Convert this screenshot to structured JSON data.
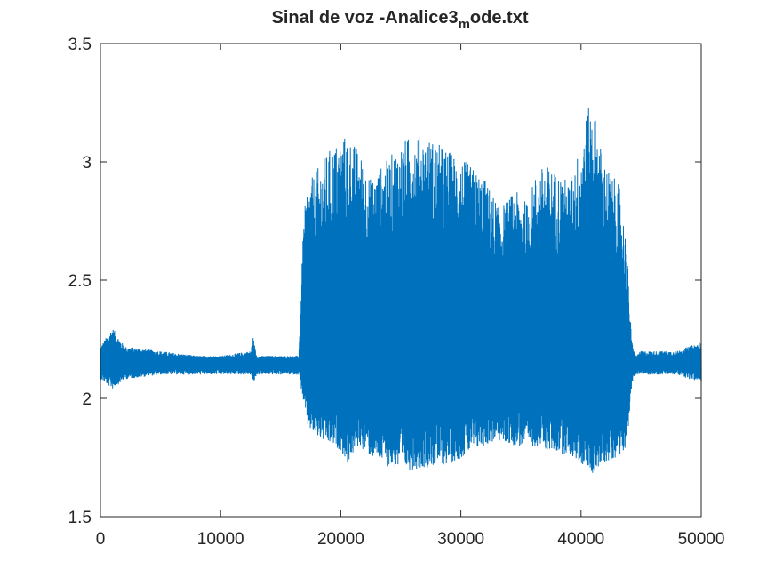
{
  "chart_data": {
    "type": "line",
    "title": "Sinal de voz -Analice3",
    "title_subscript": "m",
    "title_suffix": "ode.txt",
    "xlabel": "",
    "ylabel": "",
    "xlim": [
      0,
      50000
    ],
    "ylim": [
      1.5,
      3.5
    ],
    "xticks": [
      0,
      10000,
      20000,
      30000,
      40000,
      50000
    ],
    "xtick_labels": [
      "0",
      "10000",
      "20000",
      "30000",
      "40000",
      "50000"
    ],
    "yticks": [
      1.5,
      2,
      2.5,
      3,
      3.5
    ],
    "ytick_labels": [
      "1.5",
      "2",
      "2.5",
      "3",
      "3.5"
    ],
    "grid": false,
    "legend": "none",
    "series_color": "#0072BD",
    "n_samples": 50000,
    "baseline": 2.15,
    "envelope": {
      "x": [
        0,
        1000,
        2000,
        5000,
        8000,
        10000,
        12500,
        12700,
        13000,
        14000,
        16500,
        16900,
        17200,
        17800,
        19000,
        20000,
        20500,
        21500,
        22500,
        24000,
        25000,
        26000,
        27500,
        29000,
        30500,
        32000,
        33000,
        33500,
        34500,
        35500,
        36300,
        37000,
        38000,
        39000,
        40000,
        40500,
        41000,
        41800,
        42500,
        43200,
        43800,
        44200,
        44500,
        45000,
        48000,
        49000,
        50000
      ],
      "upper": [
        2.22,
        2.3,
        2.22,
        2.2,
        2.18,
        2.18,
        2.2,
        2.26,
        2.18,
        2.18,
        2.18,
        2.75,
        2.9,
        2.95,
        3.05,
        3.1,
        3.12,
        3.05,
        2.93,
        3.02,
        3.08,
        3.12,
        3.1,
        3.05,
        3.0,
        2.93,
        2.83,
        2.82,
        2.88,
        2.83,
        2.96,
        2.99,
        2.96,
        2.92,
        3.08,
        3.22,
        3.25,
        3.02,
        2.95,
        2.9,
        2.65,
        2.25,
        2.18,
        2.2,
        2.2,
        2.22,
        2.24
      ],
      "lower": [
        2.08,
        2.04,
        2.08,
        2.1,
        2.1,
        2.1,
        2.1,
        2.06,
        2.1,
        2.1,
        2.1,
        1.98,
        1.88,
        1.84,
        1.8,
        1.78,
        1.72,
        1.8,
        1.75,
        1.71,
        1.69,
        1.7,
        1.71,
        1.72,
        1.76,
        1.8,
        1.82,
        1.81,
        1.8,
        1.79,
        1.8,
        1.78,
        1.77,
        1.76,
        1.72,
        1.7,
        1.67,
        1.72,
        1.74,
        1.76,
        1.8,
        2.05,
        2.1,
        2.1,
        2.1,
        2.08,
        2.07
      ]
    }
  }
}
